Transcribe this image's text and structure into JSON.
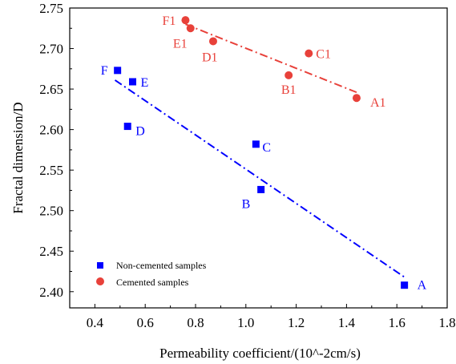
{
  "chart_data": {
    "type": "scatter",
    "xlabel": "Permeability coefficient/(10^-2cm/s)",
    "ylabel": "Fractal dimension/D",
    "xlim": [
      0.3,
      1.8
    ],
    "ylim": [
      2.38,
      2.75
    ],
    "x_ticks": [
      0.4,
      0.6,
      0.8,
      1.0,
      1.2,
      1.4,
      1.6,
      1.8
    ],
    "x_tick_labels": [
      "0.4",
      "0.6",
      "0.8",
      "1.0",
      "1.2",
      "1.4",
      "1.6",
      "1.8"
    ],
    "y_ticks": [
      2.4,
      2.45,
      2.5,
      2.55,
      2.6,
      2.65,
      2.7,
      2.75
    ],
    "y_tick_labels": [
      "2.40",
      "2.45",
      "2.50",
      "2.55",
      "2.60",
      "2.65",
      "2.70",
      "2.75"
    ],
    "grid": false,
    "legend_position": "bottom-left",
    "series": [
      {
        "name": "Non-cemented samples",
        "marker": "square",
        "color": "#0000ff",
        "points": [
          {
            "label": "A",
            "x": 1.63,
            "y": 2.408
          },
          {
            "label": "B",
            "x": 1.06,
            "y": 2.526
          },
          {
            "label": "C",
            "x": 1.04,
            "y": 2.582
          },
          {
            "label": "D",
            "x": 0.53,
            "y": 2.604
          },
          {
            "label": "E",
            "x": 0.55,
            "y": 2.659
          },
          {
            "label": "F",
            "x": 0.49,
            "y": 2.673
          }
        ],
        "fit_line": {
          "x": [
            0.48,
            1.63
          ],
          "y": [
            2.661,
            2.418
          ]
        }
      },
      {
        "name": "Cemented samples",
        "marker": "circle",
        "color": "#e8413a",
        "points": [
          {
            "label": "A1",
            "x": 1.44,
            "y": 2.639
          },
          {
            "label": "B1",
            "x": 1.17,
            "y": 2.667
          },
          {
            "label": "C1",
            "x": 1.25,
            "y": 2.694
          },
          {
            "label": "D1",
            "x": 0.87,
            "y": 2.709
          },
          {
            "label": "E1",
            "x": 0.78,
            "y": 2.725
          },
          {
            "label": "F1",
            "x": 0.76,
            "y": 2.735
          }
        ],
        "fit_line": {
          "x": [
            0.76,
            1.44
          ],
          "y": [
            2.73,
            2.646
          ]
        }
      }
    ]
  }
}
